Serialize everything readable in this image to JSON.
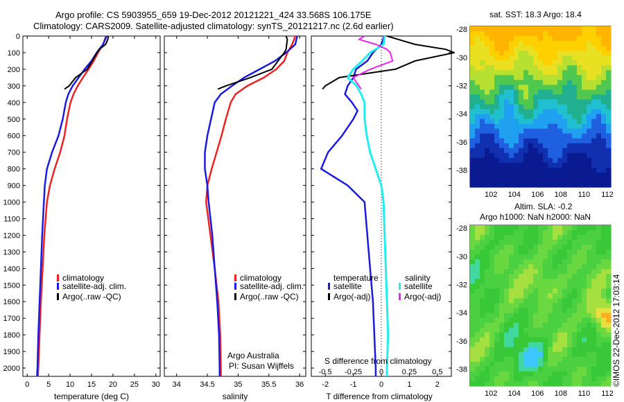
{
  "header": {
    "line1": "Argo profile: CS 5903955_659 19-Dec-2012 20121221_424 33.568S 106.175E",
    "line2": "Climatology: CARS2009. Satellite-adjusted climatology: synTS_20121217.nc (2.6d earlier)"
  },
  "colors": {
    "climatology": "#ee2222",
    "satellite": "#1a1ae0",
    "argo": "#000000",
    "sal_sat": "#22eeee",
    "sal_argo": "#ee22ee"
  },
  "depth_ticks": [
    "0",
    "100",
    "200",
    "300",
    "400",
    "500",
    "600",
    "700",
    "800",
    "900",
    "1000",
    "1100",
    "1200",
    "1300",
    "1400",
    "1500",
    "1600",
    "1700",
    "1800",
    "1900",
    "2000"
  ],
  "panels": {
    "temperature": {
      "xlabel": "temperature (deg C)",
      "xticks": [
        "0",
        "5",
        "10",
        "15",
        "20",
        "25",
        "30"
      ],
      "legend": [
        "climatology",
        "satellite-adj. clim.",
        "Argo(..raw -QC)"
      ]
    },
    "salinity": {
      "xlabel": "salinity",
      "xticks": [
        "34",
        "34.5",
        "35",
        "35.5",
        "36"
      ],
      "legend": [
        "climatology",
        "satellite-adj. clim.",
        "Argo(..raw -QC)"
      ],
      "credit1": "Argo Australia",
      "credit2": "PI: Susan Wijffels"
    },
    "difference": {
      "xlabel": "T difference from climatology",
      "top_title": "S difference from climatology",
      "top_ticks": [
        "-0.5",
        "-0.25",
        "0",
        "0.25",
        "0.5"
      ],
      "bottom_ticks": [
        "-2",
        "-1",
        "0",
        "1",
        "2"
      ],
      "legend_head_t": "temperature",
      "legend_head_s": "salinity",
      "legend_t": [
        "satellite",
        "Argo(-adj)"
      ],
      "legend_s": [
        "satellite",
        "Argo(-adj)"
      ]
    },
    "map_sst": {
      "title": "sat. SST: 18.3 Argo: 18.4",
      "yticks": [
        "-28",
        "-30",
        "-32",
        "-34",
        "-36",
        "-38"
      ],
      "xticks": [
        "102",
        "104",
        "106",
        "108",
        "110",
        "112"
      ]
    },
    "map_sla": {
      "title1": "Altim. SLA: -0.2",
      "title2": "Argo h1000: NaN h2000: NaN",
      "yticks": [
        "-28",
        "-30",
        "-32",
        "-34",
        "-36",
        "-38"
      ],
      "xticks": [
        "102",
        "104",
        "106",
        "108",
        "110",
        "112"
      ]
    }
  },
  "watermark": "©IMOS 22-Dec-2012 17:03:14",
  "chart_data": [
    {
      "type": "line",
      "title": "",
      "xlabel": "temperature (deg C)",
      "ylabel": "",
      "xlim": [
        -1,
        31
      ],
      "ylim": [
        2050,
        0
      ],
      "series": [
        {
          "name": "climatology",
          "depth": [
            0,
            50,
            100,
            150,
            200,
            250,
            300,
            350,
            400,
            500,
            600,
            700,
            800,
            900,
            1000,
            1200,
            1400,
            1600,
            1800,
            2000,
            2050
          ],
          "values": [
            18.4,
            17.7,
            16.5,
            15.5,
            14.3,
            13.0,
            11.8,
            10.8,
            10.1,
            9.3,
            8.7,
            7.7,
            6.4,
            5.3,
            4.6,
            4.0,
            3.6,
            3.2,
            2.9,
            2.6,
            2.5
          ]
        },
        {
          "name": "satellite-adj. clim.",
          "depth": [
            0,
            50,
            100,
            150,
            200,
            250,
            300,
            350,
            400,
            500,
            600,
            700,
            800,
            900,
            1000,
            1200,
            1400,
            1600,
            1800,
            2000,
            2050
          ],
          "values": [
            18.5,
            17.7,
            16.2,
            15.0,
            13.4,
            12.0,
            10.6,
            9.6,
            9.0,
            8.3,
            7.3,
            5.8,
            4.6,
            4.1,
            3.9,
            3.5,
            3.2,
            2.9,
            2.6,
            2.4,
            2.3
          ]
        },
        {
          "name": "Argo(..raw -QC)",
          "depth": [
            0,
            20,
            50,
            80,
            100,
            150,
            200,
            250,
            300,
            320
          ],
          "values": [
            18.9,
            18.8,
            18.3,
            16.8,
            16.3,
            15.2,
            14.0,
            11.3,
            9.8,
            8.7
          ]
        }
      ]
    },
    {
      "type": "line",
      "title": "",
      "xlabel": "salinity",
      "ylabel": "",
      "xlim": [
        33.8,
        36.1
      ],
      "ylim": [
        2050,
        0
      ],
      "series": [
        {
          "name": "climatology",
          "depth": [
            0,
            50,
            100,
            150,
            200,
            250,
            300,
            350,
            400,
            500,
            600,
            700,
            800,
            900,
            1000,
            1200,
            1400,
            1600,
            1800,
            2000,
            2050
          ],
          "values": [
            35.93,
            35.88,
            35.8,
            35.75,
            35.62,
            35.42,
            35.15,
            34.96,
            34.88,
            34.8,
            34.73,
            34.65,
            34.57,
            34.5,
            34.48,
            34.55,
            34.62,
            34.68,
            34.71,
            34.72,
            34.72
          ]
        },
        {
          "name": "satellite-adj. clim.",
          "depth": [
            0,
            50,
            100,
            150,
            200,
            250,
            300,
            350,
            400,
            500,
            600,
            700,
            800,
            900,
            1000,
            1200,
            1400,
            1600,
            1800,
            2000,
            2050
          ],
          "values": [
            35.96,
            35.93,
            35.78,
            35.6,
            35.35,
            35.1,
            34.9,
            34.72,
            34.62,
            34.56,
            34.5,
            34.46,
            34.46,
            34.5,
            34.52,
            34.58,
            34.62,
            34.66,
            34.69,
            34.7,
            34.7
          ]
        },
        {
          "name": "Argo(..raw -QC)",
          "depth": [
            0,
            20,
            50,
            80,
            100,
            150,
            200,
            250,
            300,
            320
          ],
          "values": [
            35.78,
            35.8,
            35.79,
            35.78,
            35.75,
            35.65,
            35.55,
            35.2,
            34.8,
            34.67
          ]
        }
      ]
    },
    {
      "type": "line",
      "title": "S difference from climatology",
      "xlabel": "T difference from climatology",
      "ylabel": "",
      "xlim": [
        -2.5,
        2.5
      ],
      "ylim": [
        2050,
        0
      ],
      "series": [
        {
          "name": "satellite",
          "depth": [
            0,
            50,
            100,
            150,
            200,
            250,
            300,
            350,
            400,
            450,
            500,
            600,
            700,
            800,
            900,
            1000,
            1200,
            1400,
            1600,
            1800,
            2000,
            2050
          ],
          "values": [
            0.1,
            0.0,
            -0.3,
            -0.5,
            -0.9,
            -1.0,
            -1.2,
            -1.3,
            -1.05,
            -0.85,
            -1.0,
            -1.4,
            -1.9,
            -2.15,
            -1.2,
            -0.6,
            -0.5,
            -0.4,
            -0.3,
            -0.25,
            -0.2,
            -0.2
          ]
        },
        {
          "name": "Argo(-adj)",
          "depth": [
            0,
            20,
            50,
            80,
            100,
            150,
            200,
            250,
            300,
            320
          ],
          "values": [
            0.2,
            0.6,
            1.2,
            2.3,
            2.6,
            1.2,
            0.5,
            -1.5,
            -2.0,
            -2.1
          ]
        },
        {
          "name": "satellite",
          "depth": [
            0,
            50,
            100,
            150,
            200,
            250,
            300,
            350,
            400,
            500,
            600,
            700,
            800,
            900,
            1000,
            1200,
            1400,
            1600,
            1800,
            2000,
            2050
          ],
          "values": [
            0.03,
            0.02,
            -0.1,
            -0.17,
            -0.25,
            -0.3,
            -0.22,
            -0.18,
            -0.15,
            -0.15,
            -0.13,
            -0.1,
            -0.05,
            0.0,
            0.02,
            0.03,
            0.04,
            0.05,
            0.06,
            0.05,
            0.05
          ]
        },
        {
          "name": "Argo(-adj)",
          "depth": [
            0,
            20,
            50,
            80,
            100,
            150,
            200,
            250,
            300,
            320
          ],
          "values": [
            -0.15,
            -0.2,
            -0.05,
            0.05,
            0.08,
            0.1,
            -0.1,
            -0.25,
            -0.2,
            -0.18
          ]
        }
      ]
    }
  ]
}
